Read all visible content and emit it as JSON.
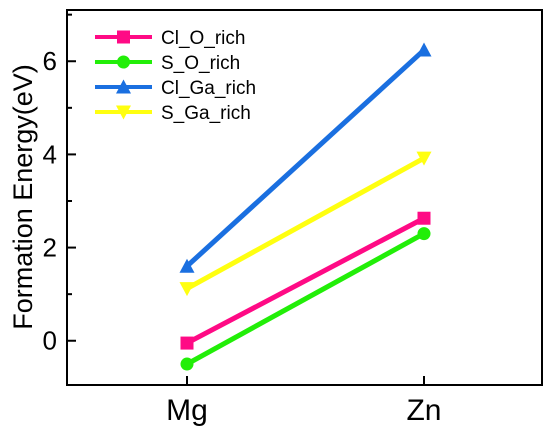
{
  "chart_data": {
    "type": "line",
    "categories": [
      "Mg",
      "Zn"
    ],
    "ylabel": "Formation Energy(eV)",
    "xlabel": "",
    "title": "",
    "ylim": [
      -0.95,
      7.1
    ],
    "yticks": [
      0,
      2,
      4,
      6
    ],
    "legend_position": "top-left",
    "grid": false,
    "series": [
      {
        "name": "Cl_O_rich",
        "values": [
          -0.05,
          2.63
        ],
        "color": "#ff0a85",
        "marker": "square"
      },
      {
        "name": "S_O_rich",
        "values": [
          -0.5,
          2.3
        ],
        "color": "#22ee08",
        "marker": "circle"
      },
      {
        "name": "Cl_Ga_rich",
        "values": [
          1.6,
          6.24
        ],
        "color": "#1a6fe0",
        "marker": "triangle-up"
      },
      {
        "name": "S_Ga_rich",
        "values": [
          1.12,
          3.92
        ],
        "color": "#ffff10",
        "marker": "triangle-down"
      }
    ]
  }
}
